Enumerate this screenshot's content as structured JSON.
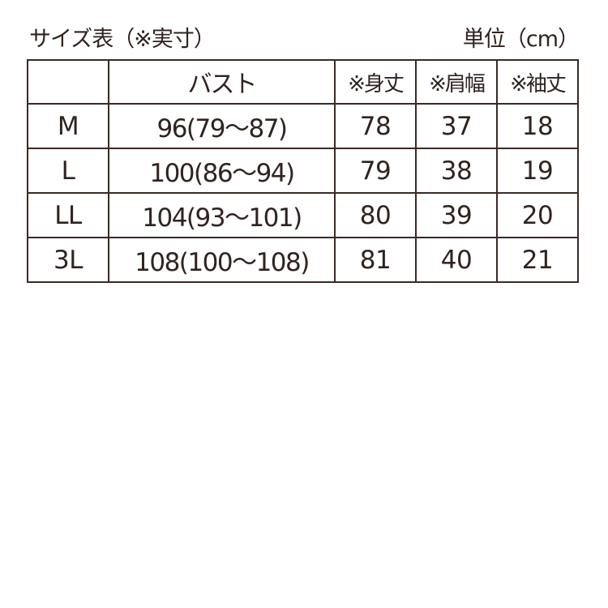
{
  "title": "サイズ表（※実寸）",
  "unit": "単位（cm）",
  "headers": [
    "",
    "バスト",
    "※身丈",
    "※肩幅",
    "※袖丈"
  ],
  "rows": [
    [
      "M",
      "96(79〜87)",
      "78",
      "37",
      "18"
    ],
    [
      "L",
      "100(86〜94)",
      "79",
      "38",
      "19"
    ],
    [
      "LL",
      "104(93〜101)",
      "80",
      "39",
      "20"
    ],
    [
      "3L",
      "108(100〜108)",
      "81",
      "40",
      "21"
    ]
  ]
}
